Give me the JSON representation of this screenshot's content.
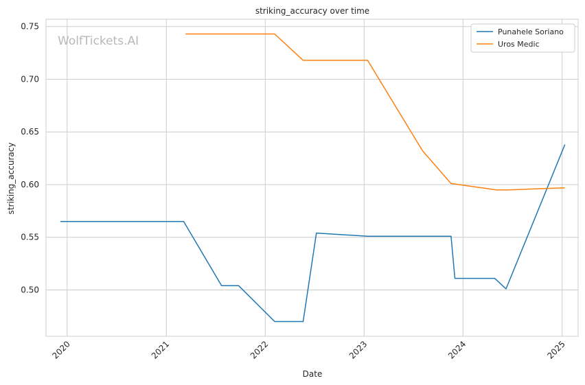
{
  "chart_data": {
    "type": "line",
    "title": "striking_accuracy over time",
    "xlabel": "Date",
    "ylabel": "striking_accuracy",
    "watermark": "WolfTickets.AI",
    "x_ticks": [
      "2020",
      "2021",
      "2022",
      "2023",
      "2024",
      "2025"
    ],
    "y_ticks": [
      "0.50",
      "0.55",
      "0.60",
      "0.65",
      "0.70",
      "0.75"
    ],
    "xlim": [
      "2019-10-15",
      "2025-03-01"
    ],
    "ylim": [
      0.456,
      0.757
    ],
    "grid": true,
    "legend_position": "top-right",
    "series": [
      {
        "name": "Punahele Soriano",
        "color": "#1f77b4",
        "points": [
          [
            "2019-12-07",
            0.565
          ],
          [
            "2021-03-06",
            0.565
          ],
          [
            "2021-07-24",
            0.504
          ],
          [
            "2021-09-25",
            0.504
          ],
          [
            "2022-02-05",
            0.47
          ],
          [
            "2022-05-21",
            0.47
          ],
          [
            "2022-07-09",
            0.554
          ],
          [
            "2023-01-14",
            0.551
          ],
          [
            "2023-11-18",
            0.551
          ],
          [
            "2023-12-02",
            0.511
          ],
          [
            "2024-04-27",
            0.511
          ],
          [
            "2024-06-08",
            0.501
          ],
          [
            "2025-01-11",
            0.638
          ]
        ]
      },
      {
        "name": "Uros Medic",
        "color": "#ff7f0e",
        "points": [
          [
            "2021-03-13",
            0.743
          ],
          [
            "2022-02-05",
            0.743
          ],
          [
            "2022-05-21",
            0.718
          ],
          [
            "2023-01-14",
            0.718
          ],
          [
            "2023-08-05",
            0.632
          ],
          [
            "2023-11-18",
            0.601
          ],
          [
            "2024-05-04",
            0.595
          ],
          [
            "2024-06-15",
            0.595
          ],
          [
            "2025-01-11",
            0.597
          ]
        ]
      }
    ]
  }
}
